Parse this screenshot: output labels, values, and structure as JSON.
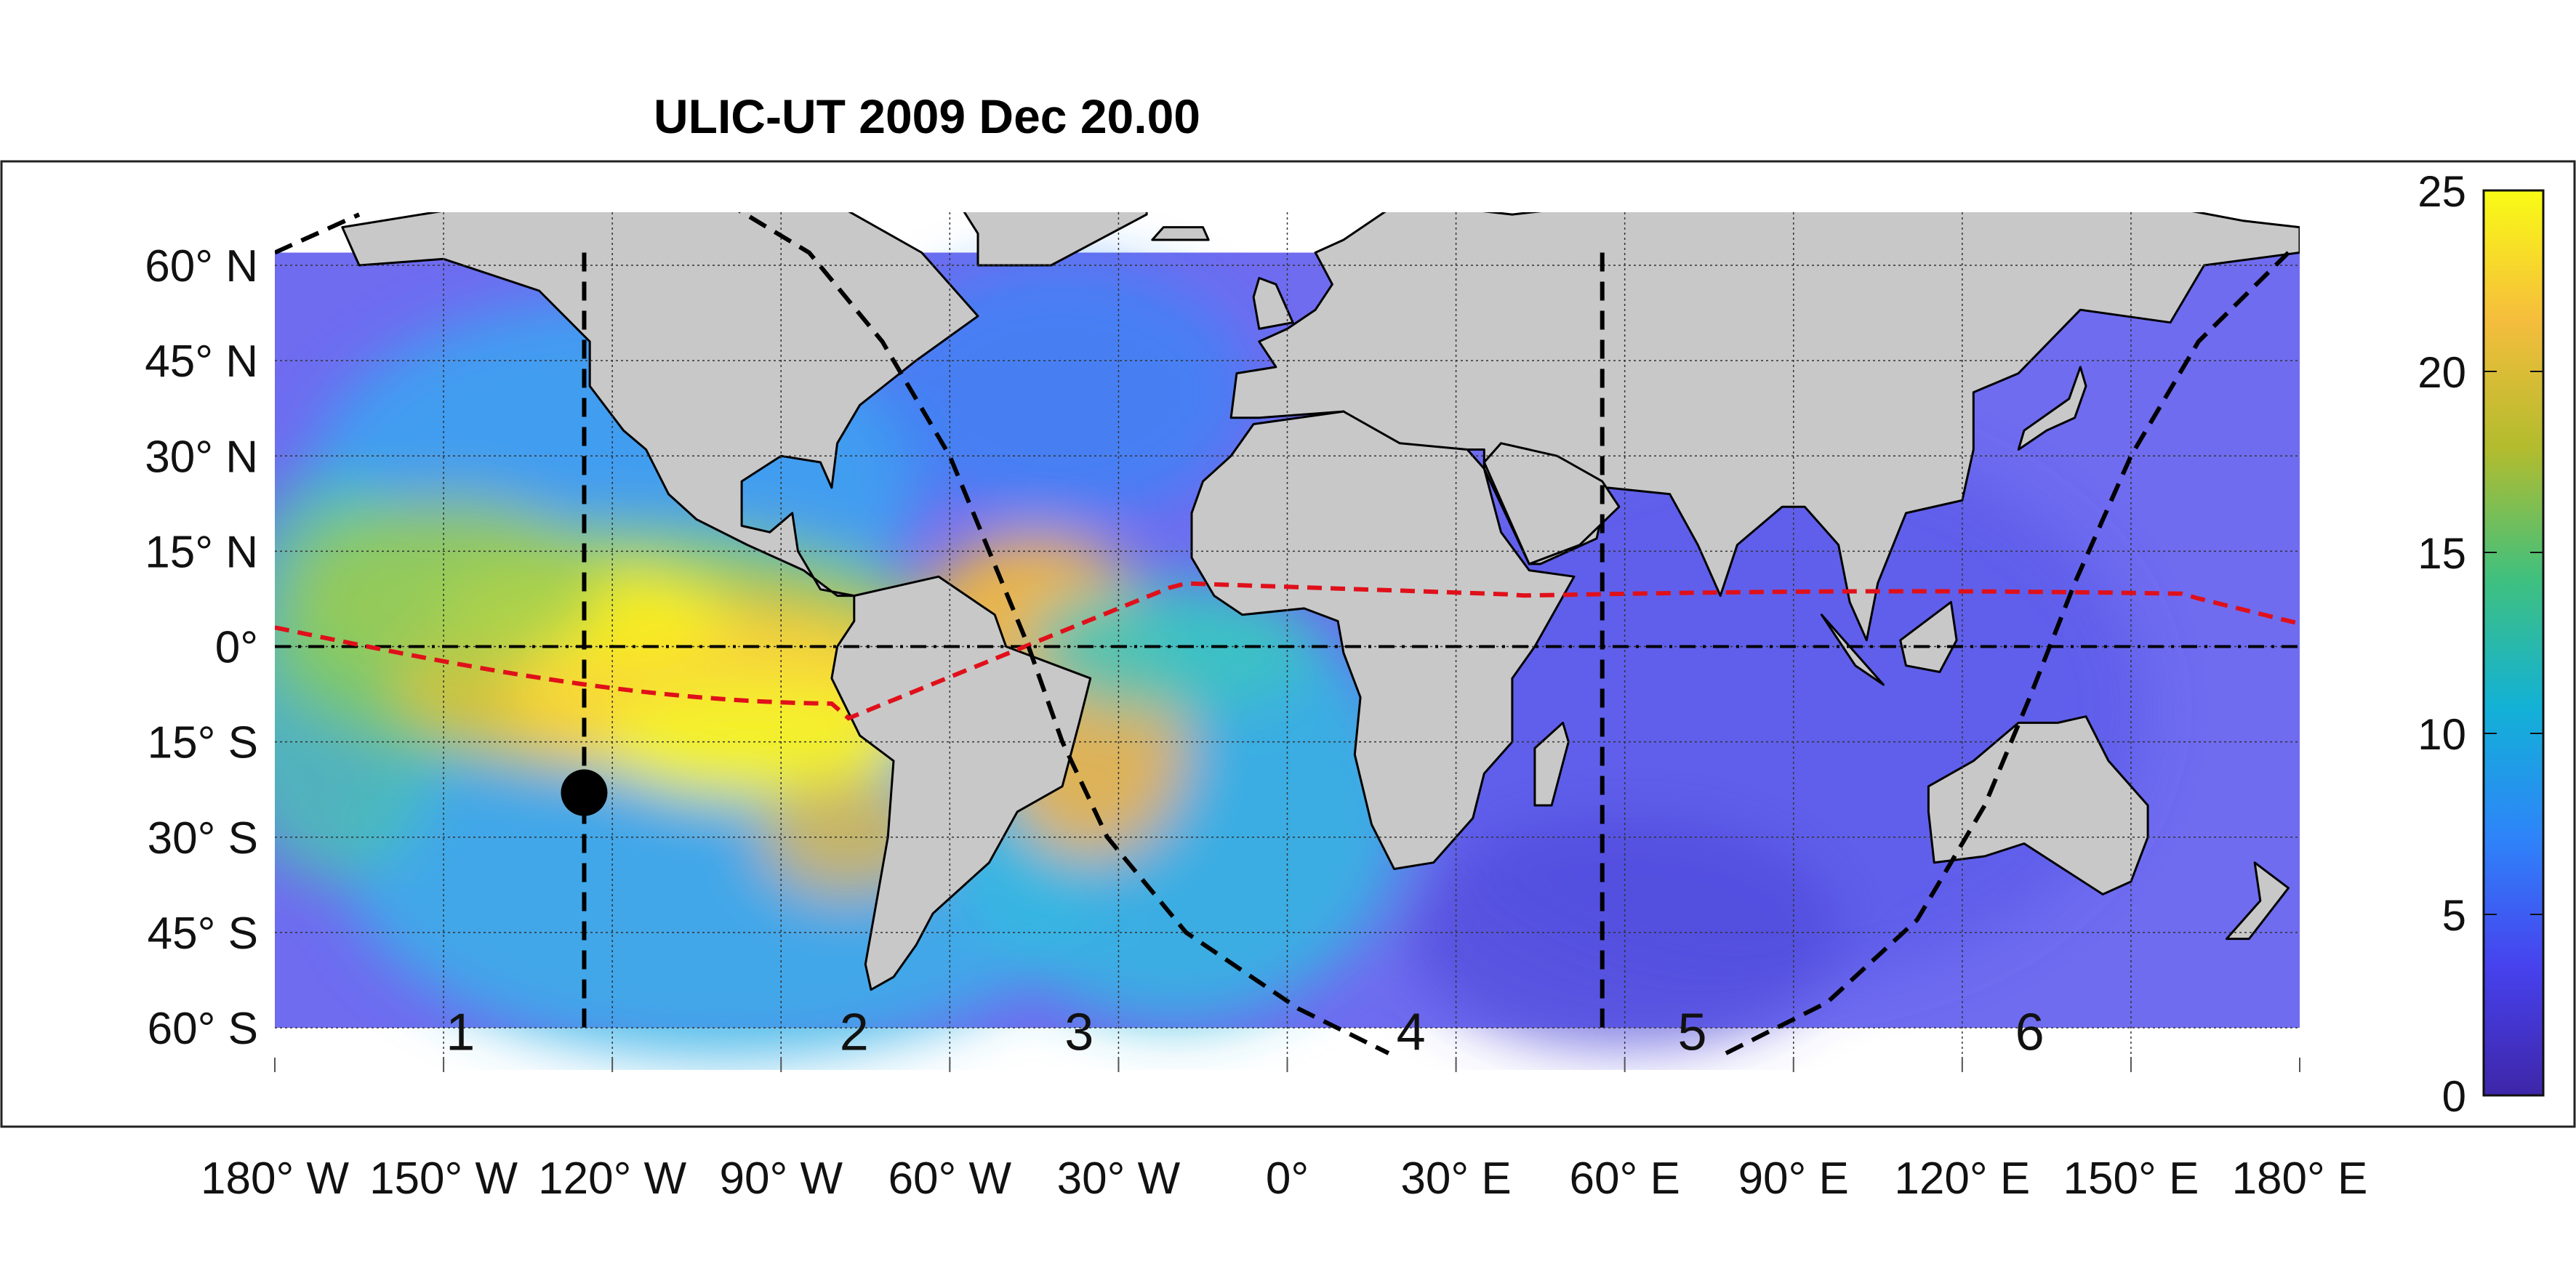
{
  "title": "ULIC-UT 2009 Dec 20.00",
  "map": {
    "lat_ticks": [
      {
        "value": 60,
        "label": "60° N"
      },
      {
        "value": 45,
        "label": "45° N"
      },
      {
        "value": 30,
        "label": "30° N"
      },
      {
        "value": 15,
        "label": "15° N"
      },
      {
        "value": 0,
        "label": "0°"
      },
      {
        "value": -15,
        "label": "15° S"
      },
      {
        "value": -30,
        "label": "30° S"
      },
      {
        "value": -45,
        "label": "45° S"
      },
      {
        "value": -60,
        "label": "60° S"
      }
    ],
    "lon_ticks": [
      {
        "value": -180,
        "label": "180° W"
      },
      {
        "value": -150,
        "label": "150° W"
      },
      {
        "value": -120,
        "label": "120° W"
      },
      {
        "value": -90,
        "label": "90° W"
      },
      {
        "value": -60,
        "label": "60° W"
      },
      {
        "value": -30,
        "label": "30° W"
      },
      {
        "value": 0,
        "label": "0°"
      },
      {
        "value": 30,
        "label": "30° E"
      },
      {
        "value": 60,
        "label": "60° E"
      },
      {
        "value": 90,
        "label": "90° E"
      },
      {
        "value": 120,
        "label": "120° E"
      },
      {
        "value": 150,
        "label": "150° E"
      },
      {
        "value": 180,
        "label": "180° E"
      }
    ],
    "lon_range": [
      -180,
      180
    ],
    "lat_range": [
      -67,
      67
    ],
    "data_lat_range": [
      -60,
      62
    ],
    "region_labels": [
      {
        "label": "1",
        "lon": -147
      },
      {
        "label": "2",
        "lon": -77
      },
      {
        "label": "3",
        "lon": -37
      },
      {
        "label": "4",
        "lon": 22
      },
      {
        "label": "5",
        "lon": 72
      },
      {
        "label": "6",
        "lon": 132
      }
    ],
    "region_label_lat": -61,
    "sector_boundaries_lon": [
      -125,
      56
    ],
    "subsolar_point": {
      "lon": -125,
      "lat": -23
    },
    "colors": {
      "land": "#c8c8c8",
      "coast": "#000000",
      "equator_line": "#000000",
      "sun_path_line": "#e0101a",
      "terminator_line": "#000000",
      "marker": "#000000"
    }
  },
  "colorbar": {
    "min": 0,
    "max": 25,
    "ticks": [
      "0",
      "5",
      "10",
      "15",
      "20",
      "25"
    ],
    "colormap": [
      "#3e26a8",
      "#4742ee",
      "#2e84f9",
      "#13b1d6",
      "#40c07e",
      "#b2bc2e",
      "#f5bd3c",
      "#f9fb15"
    ]
  }
}
